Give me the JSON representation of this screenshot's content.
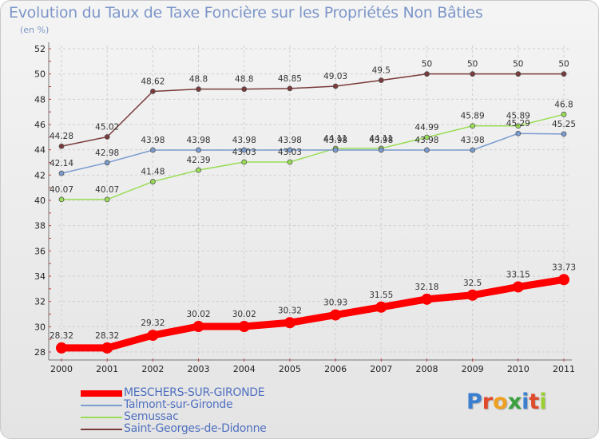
{
  "title": "Evolution du Taux de Taxe Foncière sur les Propriétés Non Bâties",
  "unit_label": "(en %)",
  "brand": "Proxiti",
  "chart_data": {
    "type": "line",
    "title": "Evolution du Taux de Taxe Foncière sur les Propriétés Non Bâties",
    "ylabel": "(en %)",
    "xlabel": "",
    "ylim": [
      28,
      52
    ],
    "yticks": [
      28,
      30,
      32,
      34,
      36,
      38,
      40,
      42,
      44,
      46,
      48,
      50,
      52
    ],
    "grid": true,
    "categories": [
      "2000",
      "2001",
      "2002",
      "2003",
      "2004",
      "2005",
      "2006",
      "2007",
      "2008",
      "2009",
      "2010",
      "2011"
    ],
    "series": [
      {
        "name": "MESCHERS-SUR-GIRONDE",
        "color": "#ff0000",
        "values": [
          28.32,
          28.32,
          29.32,
          30.02,
          30.02,
          30.32,
          30.93,
          31.55,
          32.18,
          32.5,
          33.15,
          33.73
        ],
        "labels": [
          "28.32",
          "28.32",
          "29.32",
          "30.02",
          "30.02",
          "30.32",
          "30.93",
          "31.55",
          "32.18",
          "32.5",
          "33.15",
          "33.73"
        ]
      },
      {
        "name": "Talmont-sur-Gironde",
        "color": "#7a9cd0",
        "values": [
          42.14,
          42.98,
          43.98,
          43.98,
          43.98,
          43.98,
          43.98,
          43.98,
          43.98,
          43.98,
          45.29,
          45.25
        ],
        "labels": [
          "42.14",
          "42.98",
          "43.98",
          "43.98",
          "43.98",
          "43.98",
          "43.98",
          "43.98",
          "43.98",
          "43.98",
          "45.29",
          "45.25"
        ]
      },
      {
        "name": "Semussac",
        "color": "#99dd55",
        "values": [
          40.07,
          40.07,
          41.48,
          42.39,
          43.03,
          43.03,
          44.11,
          44.11,
          44.99,
          45.89,
          45.89,
          46.8
        ],
        "labels": [
          "40.07",
          "40.07",
          "41.48",
          "42.39",
          "43.03",
          "43.03",
          "44.11",
          "44.11",
          "44.99",
          "45.89",
          "45.89",
          "46.8"
        ]
      },
      {
        "name": "Saint-Georges-de-Didonne",
        "color": "#7a3a3a",
        "values": [
          44.28,
          45.02,
          48.62,
          48.8,
          48.8,
          48.85,
          49.03,
          49.5,
          50,
          50,
          50,
          50
        ],
        "labels": [
          "44.28",
          "45.02",
          "48.62",
          "48.8",
          "48.8",
          "48.85",
          "49.03",
          "49.5",
          "50",
          "50",
          "50",
          "50"
        ]
      }
    ]
  }
}
